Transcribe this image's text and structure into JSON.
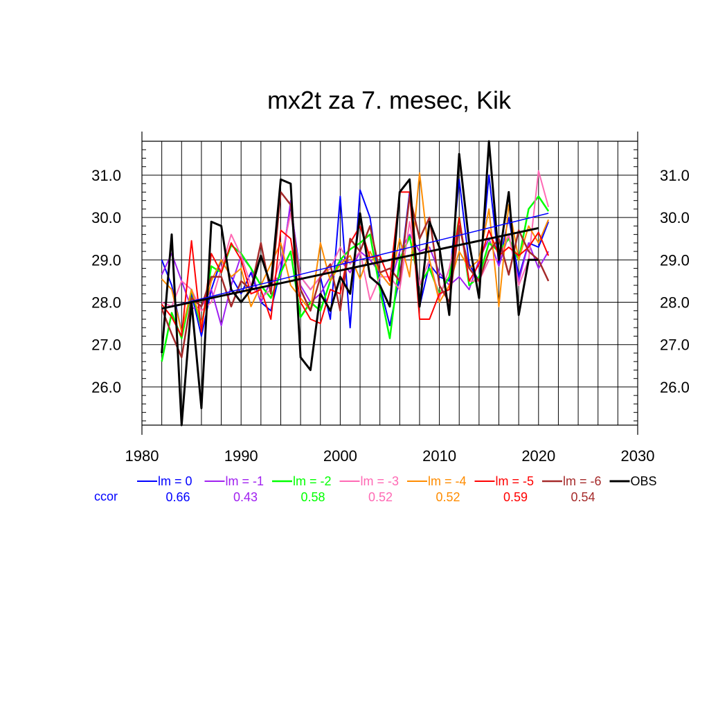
{
  "chart_data": {
    "type": "line",
    "title": "mx2t za 7. mesec, Kik",
    "xlabel": "",
    "ylabel": "",
    "xlim": [
      1980,
      2030
    ],
    "ylim": [
      25.1,
      31.8
    ],
    "x_ticks": [
      1980,
      1990,
      2000,
      2010,
      2020,
      2030
    ],
    "x_tick_labels": [
      "1980",
      "1990",
      "2000",
      "2010",
      "2020",
      "2030"
    ],
    "y_ticks": [
      26.0,
      27.0,
      28.0,
      29.0,
      30.0,
      31.0
    ],
    "y_tick_labels": [
      "26.0",
      "27.0",
      "28.0",
      "29.0",
      "30.0",
      "31.0"
    ],
    "grid": true,
    "legend_position": "bottom",
    "ccor_label": "ccor",
    "x": [
      1982,
      1983,
      1984,
      1985,
      1986,
      1987,
      1988,
      1989,
      1990,
      1991,
      1992,
      1993,
      1994,
      1995,
      1996,
      1997,
      1998,
      1999,
      2000,
      2001,
      2002,
      2003,
      2004,
      2005,
      2006,
      2007,
      2008,
      2009,
      2010,
      2011,
      2012,
      2013,
      2014,
      2015,
      2016,
      2017,
      2018,
      2019,
      2020,
      2021
    ],
    "series": [
      {
        "name": "lm = 0",
        "ccor": "0.66",
        "color": "#0000ff",
        "width": 2,
        "values": [
          29.0,
          28.4,
          27.3,
          28.2,
          27.2,
          28.3,
          29.0,
          28.6,
          28.2,
          28.7,
          28.0,
          27.8,
          28.8,
          30.3,
          28.6,
          28.3,
          28.6,
          27.6,
          30.5,
          27.4,
          30.65,
          30.0,
          28.4,
          27.45,
          28.6,
          30.6,
          27.9,
          28.9,
          28.6,
          28.5,
          30.9,
          28.9,
          28.5,
          31.0,
          28.9,
          30.0,
          28.6,
          29.4,
          29.3,
          29.9
        ],
        "trend": [
          27.85,
          30.1
        ]
      },
      {
        "name": "lm = -1",
        "ccor": "0.43",
        "color": "#a020f0",
        "width": 2,
        "values": [
          28.65,
          29.15,
          28.5,
          27.85,
          27.9,
          28.3,
          27.45,
          28.4,
          29.1,
          28.8,
          28.0,
          28.5,
          28.6,
          30.4,
          28.4,
          28.0,
          28.2,
          28.6,
          29.0,
          28.7,
          29.2,
          29.0,
          28.7,
          28.4,
          29.2,
          29.6,
          29.2,
          29.3,
          28.7,
          28.4,
          28.6,
          28.3,
          29.0,
          29.5,
          28.85,
          29.6,
          28.5,
          29.4,
          28.8,
          29.2
        ],
        "trend": null
      },
      {
        "name": "lm = -2",
        "ccor": "0.58",
        "color": "#00ff00",
        "width": 2.5,
        "values": [
          26.6,
          27.75,
          27.15,
          28.3,
          27.4,
          28.85,
          28.7,
          29.35,
          29.15,
          28.8,
          28.4,
          28.1,
          28.7,
          29.2,
          27.65,
          28.0,
          27.8,
          28.5,
          29.0,
          29.25,
          29.4,
          29.6,
          28.3,
          27.15,
          29.0,
          29.55,
          28.4,
          28.8,
          28.2,
          28.6,
          30.0,
          28.4,
          28.6,
          29.4,
          29.2,
          29.5,
          29.0,
          30.2,
          30.5,
          30.15
        ],
        "trend": null
      },
      {
        "name": "lm = -3",
        "ccor": "0.52",
        "color": "#ff69b4",
        "width": 2,
        "values": [
          28.0,
          27.9,
          28.5,
          28.3,
          27.8,
          28.0,
          28.8,
          29.6,
          29.1,
          28.4,
          28.1,
          28.3,
          29.0,
          30.1,
          28.6,
          28.3,
          28.6,
          28.8,
          29.3,
          28.9,
          29.2,
          28.05,
          28.6,
          28.6,
          28.3,
          29.9,
          28.4,
          29.0,
          28.1,
          28.8,
          29.9,
          28.5,
          28.5,
          29.0,
          29.0,
          29.6,
          28.4,
          29.0,
          31.1,
          30.25
        ],
        "trend": null
      },
      {
        "name": "lm = -4",
        "ccor": "0.52",
        "color": "#ff8c00",
        "width": 2,
        "values": [
          28.55,
          28.3,
          27.3,
          28.3,
          27.5,
          28.5,
          29.0,
          28.6,
          28.8,
          27.9,
          28.4,
          28.9,
          29.4,
          28.4,
          28.1,
          27.8,
          29.4,
          28.5,
          28.9,
          29.1,
          28.55,
          29.2,
          28.7,
          28.4,
          29.5,
          28.6,
          31.05,
          29.0,
          28.0,
          28.4,
          29.2,
          28.8,
          29.0,
          30.2,
          27.9,
          30.3,
          29.0,
          29.8,
          29.4,
          29.95
        ],
        "trend": null
      },
      {
        "name": "lm = -5",
        "ccor": "0.59",
        "color": "#ff0000",
        "width": 2,
        "values": [
          27.95,
          27.65,
          27.2,
          29.45,
          27.3,
          29.15,
          28.7,
          29.4,
          29.0,
          28.2,
          28.3,
          27.6,
          29.7,
          29.5,
          28.0,
          27.6,
          27.5,
          28.3,
          28.2,
          29.4,
          29.8,
          29.05,
          29.1,
          28.5,
          30.6,
          30.6,
          27.6,
          27.6,
          28.2,
          28.3,
          30.0,
          28.5,
          28.9,
          29.7,
          29.1,
          29.3,
          29.1,
          29.3,
          29.65,
          29.1
        ],
        "trend": null
      },
      {
        "name": "lm = -6",
        "ccor": "0.54",
        "color": "#a52a2a",
        "width": 2.5,
        "values": [
          27.85,
          27.25,
          26.7,
          28.1,
          27.9,
          28.6,
          28.6,
          27.9,
          28.5,
          28.3,
          29.4,
          28.2,
          30.6,
          30.3,
          28.3,
          27.8,
          28.6,
          28.9,
          27.8,
          29.5,
          29.2,
          29.8,
          28.7,
          28.8,
          28.5,
          30.5,
          29.5,
          30.0,
          28.4,
          28.0,
          29.8,
          28.8,
          28.5,
          29.2,
          29.5,
          28.65,
          29.7,
          29.2,
          29.0,
          28.5
        ],
        "trend": null
      },
      {
        "name": "OBS",
        "ccor": "",
        "color": "#000000",
        "width": 3,
        "values": [
          26.8,
          29.6,
          25.1,
          28.0,
          25.5,
          29.9,
          29.8,
          28.3,
          28.0,
          28.3,
          29.1,
          28.4,
          30.9,
          30.8,
          26.7,
          26.4,
          28.2,
          27.8,
          28.6,
          28.2,
          30.1,
          28.6,
          28.4,
          27.9,
          30.6,
          30.9,
          27.9,
          29.9,
          29.3,
          27.7,
          31.5,
          29.4,
          28.1,
          31.8,
          29.0,
          30.6,
          27.7,
          29.0,
          29.0,
          null
        ],
        "trend": [
          27.85,
          29.75
        ]
      }
    ]
  }
}
